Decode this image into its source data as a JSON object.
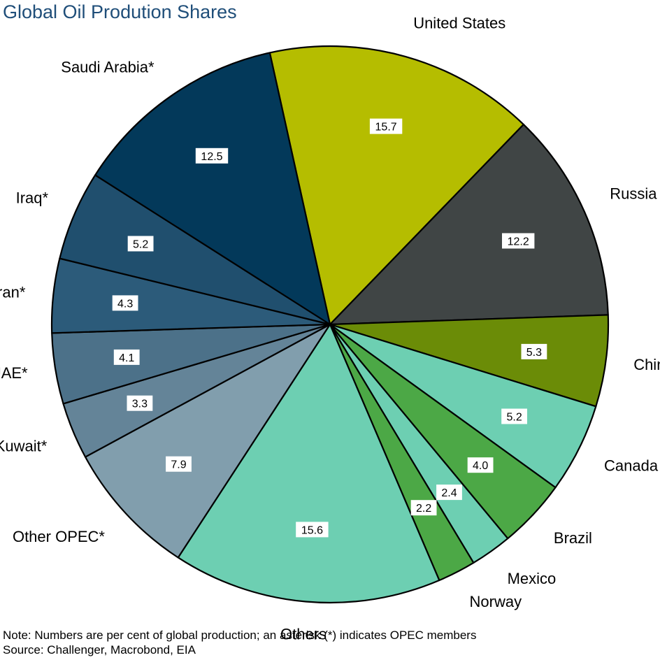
{
  "title": "Global Oil Prodution Shares",
  "note": "Note: Numbers are per cent of global production; an asterisk (*) indicates OPEC members",
  "source": "Source: Challenger, Macrobond, EIA",
  "chart_data": {
    "type": "pie",
    "title": "Global Oil Prodution Shares",
    "unit": "per cent of global production",
    "slices": [
      {
        "label": "United States",
        "value": 15.7,
        "color": "#b5bd00"
      },
      {
        "label": "Russia",
        "value": 12.2,
        "color": "#404545"
      },
      {
        "label": "China",
        "value": 5.3,
        "color": "#6b8c07"
      },
      {
        "label": "Canada",
        "value": 5.2,
        "color": "#6dcfb2"
      },
      {
        "label": "Brazil",
        "value": 4.0,
        "color": "#4ca846"
      },
      {
        "label": "Mexico",
        "value": 2.4,
        "color": "#6dcfb2"
      },
      {
        "label": "Norway",
        "value": 2.2,
        "color": "#4ca846"
      },
      {
        "label": "Others",
        "value": 15.6,
        "color": "#6dcfb2"
      },
      {
        "label": "Other OPEC*",
        "value": 7.9,
        "color": "#819ead"
      },
      {
        "label": "Kuwait*",
        "value": 3.3,
        "color": "#648498"
      },
      {
        "label": "UAE*",
        "value": 4.1,
        "color": "#4c7189"
      },
      {
        "label": "Iran*",
        "value": 4.3,
        "color": "#2c5b7a"
      },
      {
        "label": "Iraq*",
        "value": 5.2,
        "color": "#204f6e"
      },
      {
        "label": "Saudi Arabia*",
        "value": 12.5,
        "color": "#03395a"
      }
    ]
  }
}
